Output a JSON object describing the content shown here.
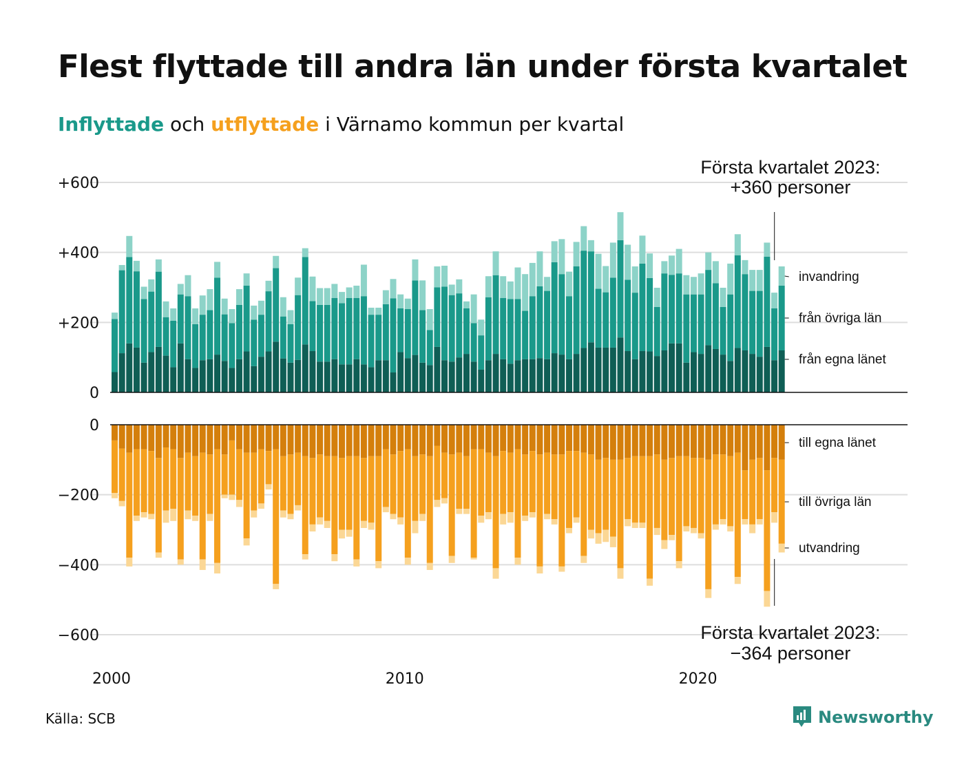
{
  "title": "Flest flyttade till andra län under första kvartalet",
  "subtitle": {
    "in_word": "Inflyttade",
    "mid": "och",
    "out_word": "utflyttade",
    "rest": "i Värnamo kommun per kvartal"
  },
  "source": "Källa: SCB",
  "brand": "Newsworthy",
  "colors": {
    "in_own": "#0f5e55",
    "in_other": "#1a998a",
    "in_immig": "#8dd3c8",
    "out_own": "#d47f0c",
    "out_other": "#f5a01e",
    "out_emig": "#fbd795",
    "grid": "#dddddd",
    "axis": "#111111",
    "text": "#111111",
    "brand": "#2a8a80"
  },
  "chart_data": {
    "type": "bar",
    "stacked": true,
    "x_label_every": "year",
    "x_start_year": 2000,
    "x_tick_labels": [
      "2000",
      "2010",
      "2020"
    ],
    "x_tick_years": [
      2000,
      2010,
      2020
    ],
    "upper_panel": {
      "ylim": [
        0,
        600
      ],
      "y_ticks": [
        0,
        200,
        400,
        600
      ],
      "y_tick_labels": [
        "0",
        "+200",
        "+400",
        "+600"
      ],
      "series": [
        {
          "name": "från egna länet",
          "values": [
            58,
            112,
            140,
            128,
            85,
            115,
            130,
            105,
            72,
            140,
            95,
            70,
            92,
            95,
            108,
            90,
            70,
            95,
            117,
            75,
            102,
            117,
            145,
            97,
            85,
            93,
            137,
            118,
            88,
            88,
            95,
            80,
            80,
            95,
            80,
            72,
            92,
            92,
            57,
            115,
            98,
            107,
            85,
            78,
            130,
            92,
            88,
            100,
            110,
            88,
            65,
            92,
            110,
            95,
            82,
            92,
            95,
            95,
            98,
            95,
            112,
            108,
            95,
            110,
            127,
            143,
            128,
            128,
            128,
            157,
            118,
            95,
            118,
            117,
            104,
            120,
            140,
            140,
            85,
            115,
            110,
            135,
            124,
            108,
            90,
            127,
            120,
            110,
            102,
            130,
            92,
            120
          ]
        },
        {
          "name": "från övriga län",
          "values": [
            152,
            237,
            247,
            218,
            182,
            173,
            215,
            110,
            133,
            140,
            180,
            125,
            130,
            140,
            220,
            133,
            128,
            155,
            188,
            133,
            120,
            172,
            210,
            120,
            110,
            185,
            250,
            143,
            162,
            162,
            175,
            175,
            190,
            175,
            195,
            150,
            130,
            160,
            212,
            125,
            140,
            213,
            150,
            100,
            170,
            210,
            190,
            183,
            130,
            110,
            98,
            180,
            225,
            175,
            185,
            175,
            138,
            180,
            205,
            195,
            260,
            230,
            180,
            250,
            278,
            260,
            168,
            158,
            200,
            278,
            204,
            190,
            250,
            210,
            140,
            220,
            196,
            200,
            195,
            165,
            170,
            215,
            188,
            136,
            190,
            265,
            218,
            180,
            188,
            258,
            148,
            185
          ]
        },
        {
          "name": "invandring",
          "values": [
            18,
            15,
            60,
            30,
            35,
            35,
            35,
            45,
            35,
            30,
            60,
            45,
            55,
            60,
            45,
            45,
            40,
            45,
            35,
            40,
            40,
            30,
            35,
            55,
            40,
            50,
            25,
            70,
            48,
            48,
            40,
            32,
            30,
            35,
            90,
            20,
            20,
            40,
            55,
            40,
            30,
            60,
            85,
            60,
            60,
            60,
            30,
            40,
            20,
            82,
            45,
            60,
            68,
            62,
            50,
            90,
            105,
            95,
            100,
            40,
            60,
            100,
            70,
            70,
            70,
            32,
            100,
            75,
            100,
            80,
            100,
            75,
            80,
            70,
            55,
            35,
            55,
            70,
            55,
            50,
            60,
            50,
            63,
            55,
            88,
            60,
            40,
            60,
            60,
            40,
            45,
            55
          ]
        }
      ],
      "annotation": {
        "label": "Första kvartalet 2023:",
        "value": "+360 personer"
      }
    },
    "lower_panel": {
      "ylim": [
        -600,
        0
      ],
      "y_ticks": [
        0,
        -200,
        -400,
        -600
      ],
      "y_tick_labels": [
        "0",
        "−200",
        "−400",
        "−600"
      ],
      "series": [
        {
          "name": "till egna länet",
          "values": [
            -45,
            -68,
            -80,
            -70,
            -70,
            -75,
            -95,
            -65,
            -70,
            -95,
            -80,
            -90,
            -80,
            -85,
            -70,
            -85,
            -45,
            -70,
            -80,
            -80,
            -70,
            -75,
            -70,
            -90,
            -85,
            -80,
            -90,
            -95,
            -85,
            -90,
            -90,
            -95,
            -90,
            -90,
            -95,
            -90,
            -90,
            -70,
            -85,
            -75,
            -70,
            -90,
            -85,
            -90,
            -60,
            -80,
            -85,
            -80,
            -90,
            -70,
            -70,
            -80,
            -90,
            -75,
            -80,
            -70,
            -85,
            -75,
            -85,
            -80,
            -85,
            -85,
            -75,
            -75,
            -80,
            -85,
            -100,
            -95,
            -100,
            -100,
            -95,
            -90,
            -90,
            -90,
            -85,
            -100,
            -95,
            -90,
            -90,
            -95,
            -95,
            -100,
            -85,
            -85,
            -90,
            -80,
            -130,
            -100,
            -95,
            -130,
            -95,
            -100
          ]
        },
        {
          "name": "till övriga län",
          "values": [
            -150,
            -150,
            -300,
            -190,
            -180,
            -180,
            -270,
            -180,
            -170,
            -290,
            -165,
            -170,
            -305,
            -170,
            -325,
            -115,
            -155,
            -145,
            -245,
            -165,
            -155,
            -95,
            -385,
            -155,
            -170,
            -150,
            -280,
            -190,
            -180,
            -185,
            -280,
            -205,
            -210,
            -295,
            -180,
            -190,
            -300,
            -165,
            -170,
            -190,
            -310,
            -185,
            -170,
            -305,
            -155,
            -130,
            -290,
            -160,
            -150,
            -310,
            -190,
            -170,
            -320,
            -180,
            -170,
            -310,
            -175,
            -175,
            -320,
            -175,
            -185,
            -320,
            -220,
            -190,
            -295,
            -215,
            -210,
            -205,
            -220,
            -310,
            -175,
            -190,
            -190,
            -350,
            -210,
            -230,
            -220,
            -300,
            -200,
            -200,
            -215,
            -370,
            -200,
            -185,
            -200,
            -355,
            -140,
            -185,
            -175,
            -345,
            -155,
            -240
          ]
        },
        {
          "name": "utvandring",
          "values": [
            -15,
            -15,
            -25,
            -15,
            -15,
            -15,
            -15,
            -35,
            -35,
            -15,
            -25,
            -15,
            -30,
            -20,
            -30,
            -10,
            -15,
            -20,
            -20,
            -20,
            -15,
            -15,
            -15,
            -20,
            -15,
            -15,
            -15,
            -20,
            -20,
            -20,
            -20,
            -25,
            -20,
            -20,
            -20,
            -20,
            -20,
            -15,
            -15,
            -20,
            -20,
            -35,
            -20,
            -20,
            -20,
            -15,
            -20,
            -15,
            -15,
            -5,
            -20,
            -20,
            -30,
            -30,
            -30,
            -20,
            -15,
            -15,
            -20,
            -15,
            -15,
            -15,
            -15,
            -15,
            -20,
            -25,
            -30,
            -35,
            -30,
            -30,
            -20,
            -15,
            -15,
            -20,
            -20,
            -25,
            -15,
            -20,
            -15,
            -15,
            -15,
            -25,
            -15,
            -15,
            -15,
            -20,
            -15,
            -25,
            -15,
            -45,
            -30,
            -25
          ]
        }
      ],
      "annotation": {
        "label": "Första kvartalet 2023:",
        "value": "−364 personer"
      }
    }
  }
}
